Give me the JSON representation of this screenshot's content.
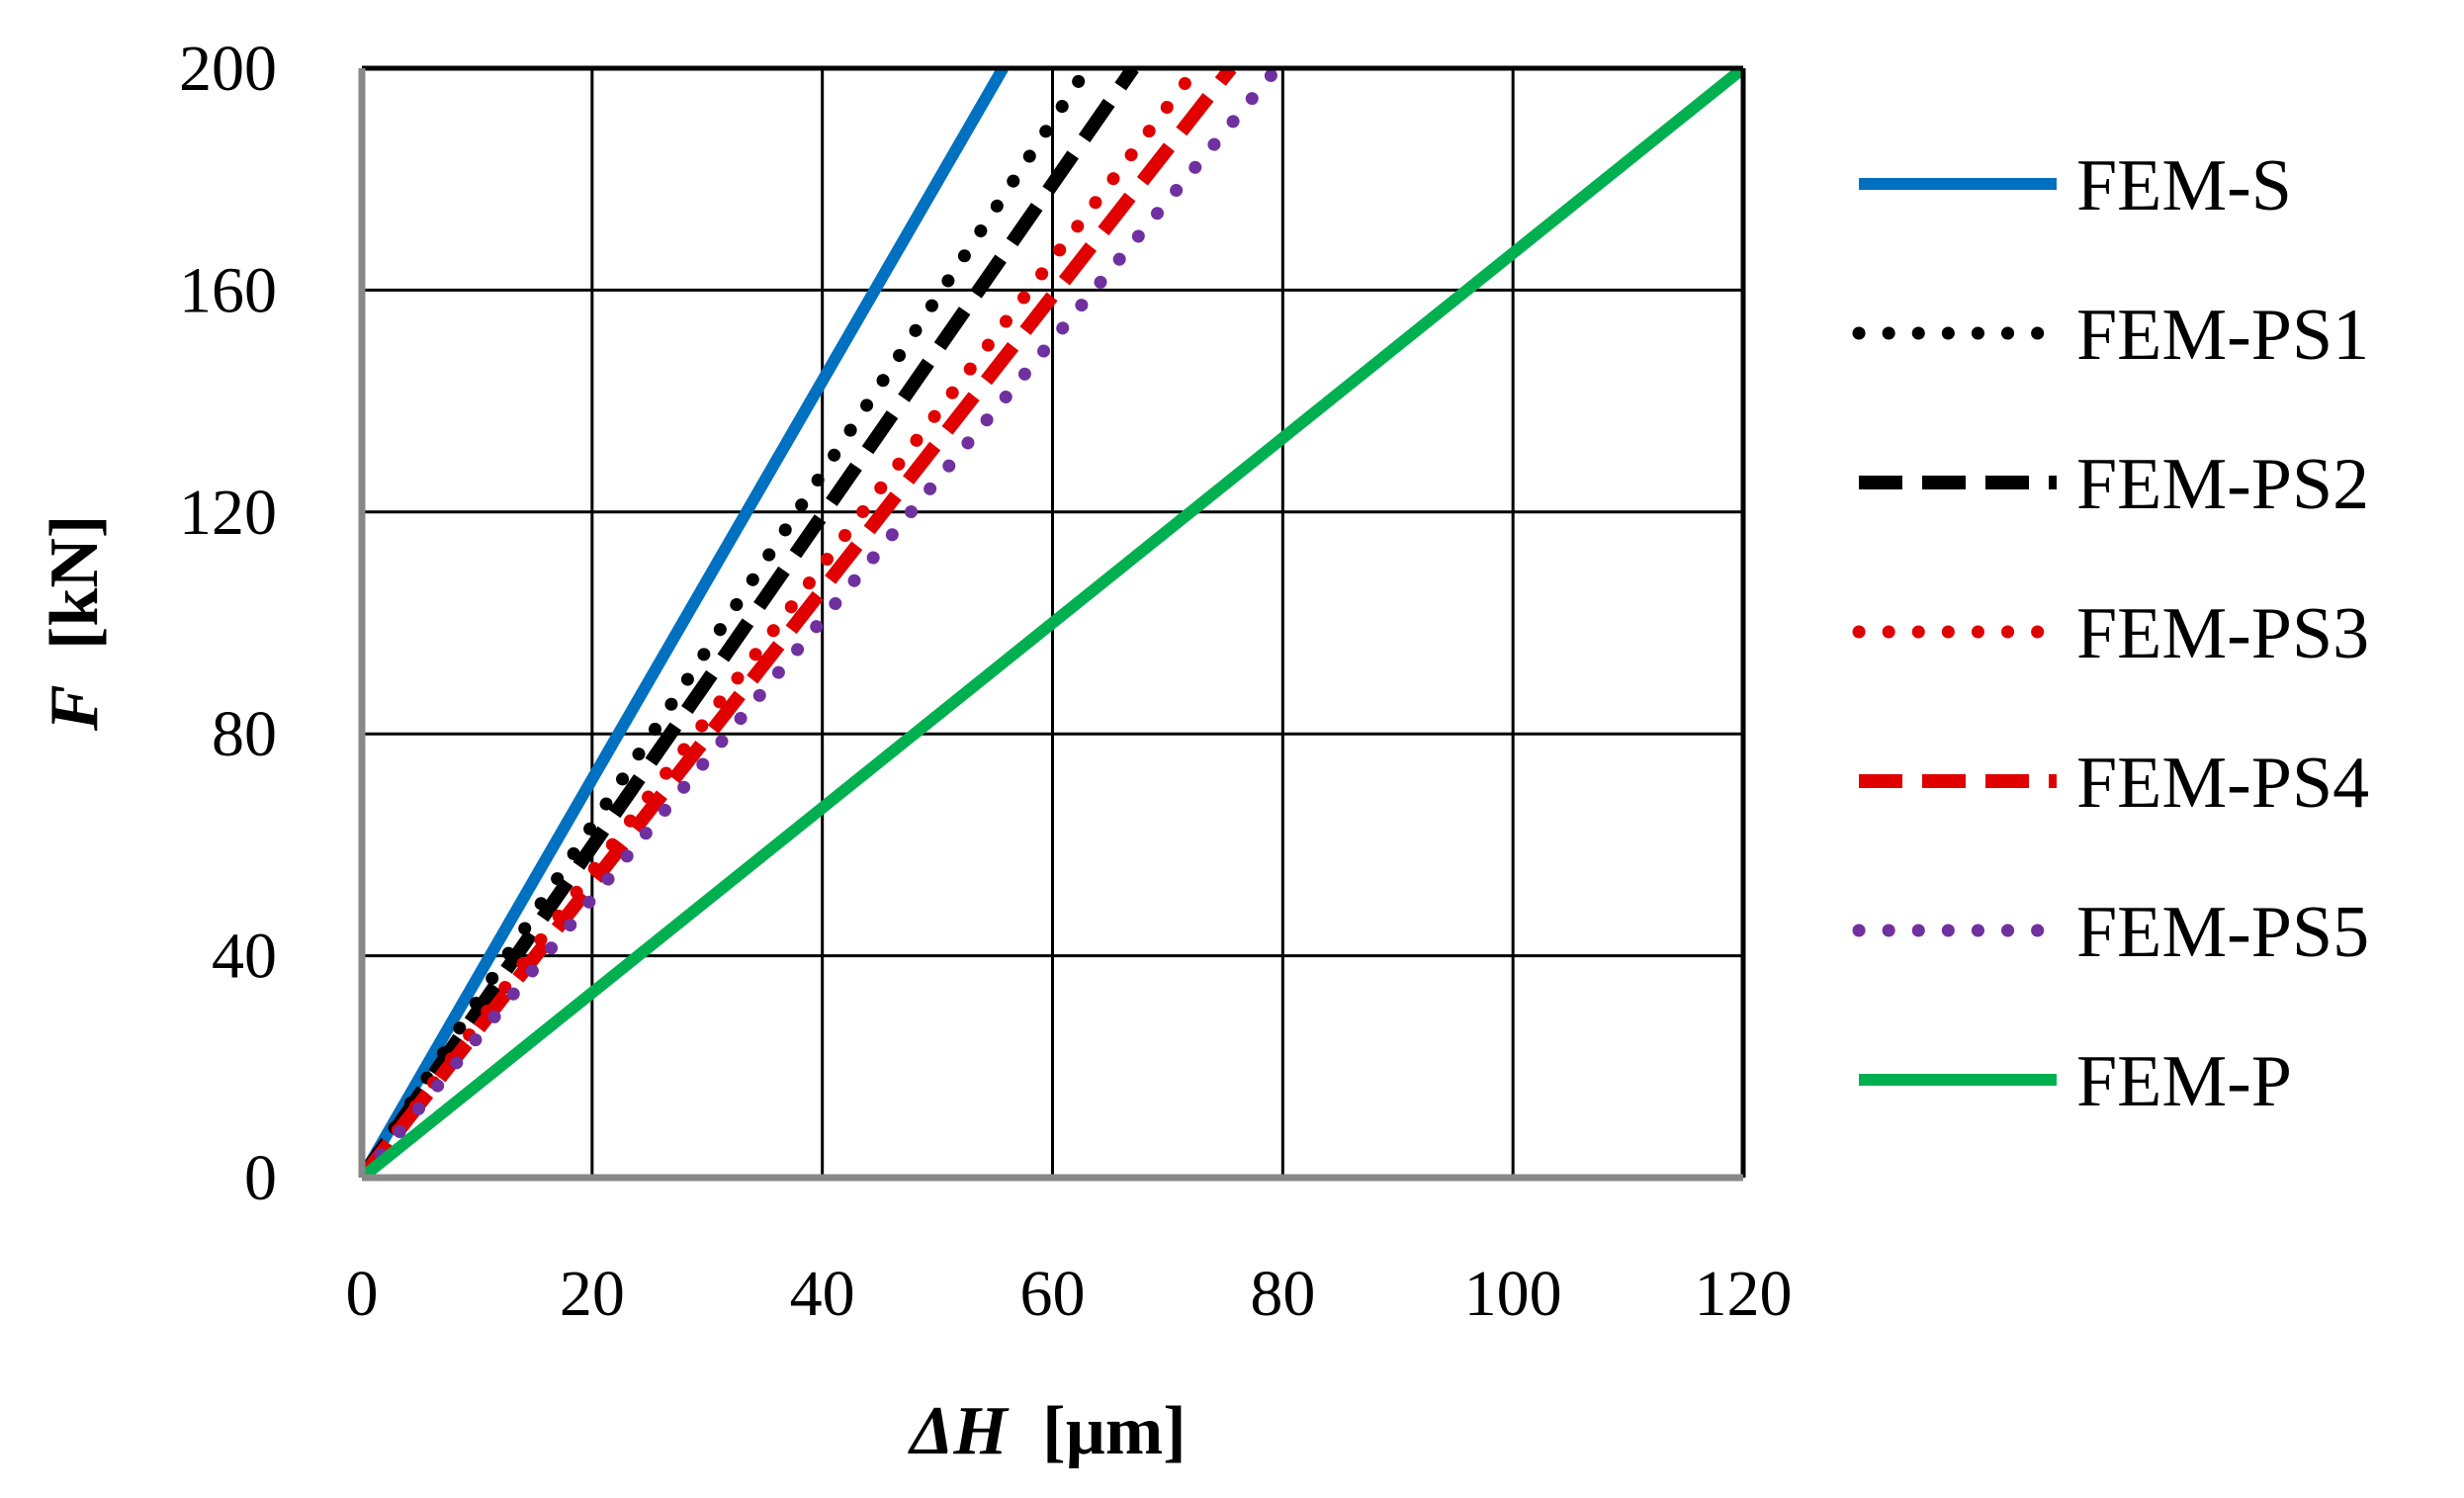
{
  "chart_data": {
    "type": "line",
    "title": "",
    "xlabel": {
      "var": "ΔH",
      "unit": "[µm]"
    },
    "ylabel": {
      "var": "F",
      "unit": "[kN]"
    },
    "xlim": [
      0,
      120
    ],
    "ylim": [
      0,
      200
    ],
    "xticks": [
      0,
      20,
      40,
      60,
      80,
      100,
      120
    ],
    "yticks": [
      0,
      40,
      80,
      120,
      160,
      200
    ],
    "grid": true,
    "legend_position": "right",
    "series": [
      {
        "name": "FEM-S",
        "color": "#0070C0",
        "style": "solid",
        "x": [
          0,
          55.7
        ],
        "y": [
          0,
          200
        ]
      },
      {
        "name": "FEM-PS1",
        "color": "#000000",
        "style": "dotted",
        "x": [
          0,
          63
        ],
        "y": [
          0,
          200
        ]
      },
      {
        "name": "FEM-PS2",
        "color": "#000000",
        "style": "dashed",
        "x": [
          0,
          67
        ],
        "y": [
          0,
          200
        ]
      },
      {
        "name": "FEM-PS3",
        "color": "#E00000",
        "style": "dotted",
        "x": [
          0,
          72.5
        ],
        "y": [
          0,
          200
        ]
      },
      {
        "name": "FEM-PS4",
        "color": "#E00000",
        "style": "dashed",
        "x": [
          0,
          75.5
        ],
        "y": [
          0,
          200
        ]
      },
      {
        "name": "FEM-PS5",
        "color": "#7030A0",
        "style": "dotted",
        "x": [
          0,
          79.5
        ],
        "y": [
          0,
          200
        ]
      },
      {
        "name": "FEM-P",
        "color": "#00B050",
        "style": "solid",
        "x": [
          0,
          120
        ],
        "y": [
          0,
          200
        ]
      }
    ]
  }
}
